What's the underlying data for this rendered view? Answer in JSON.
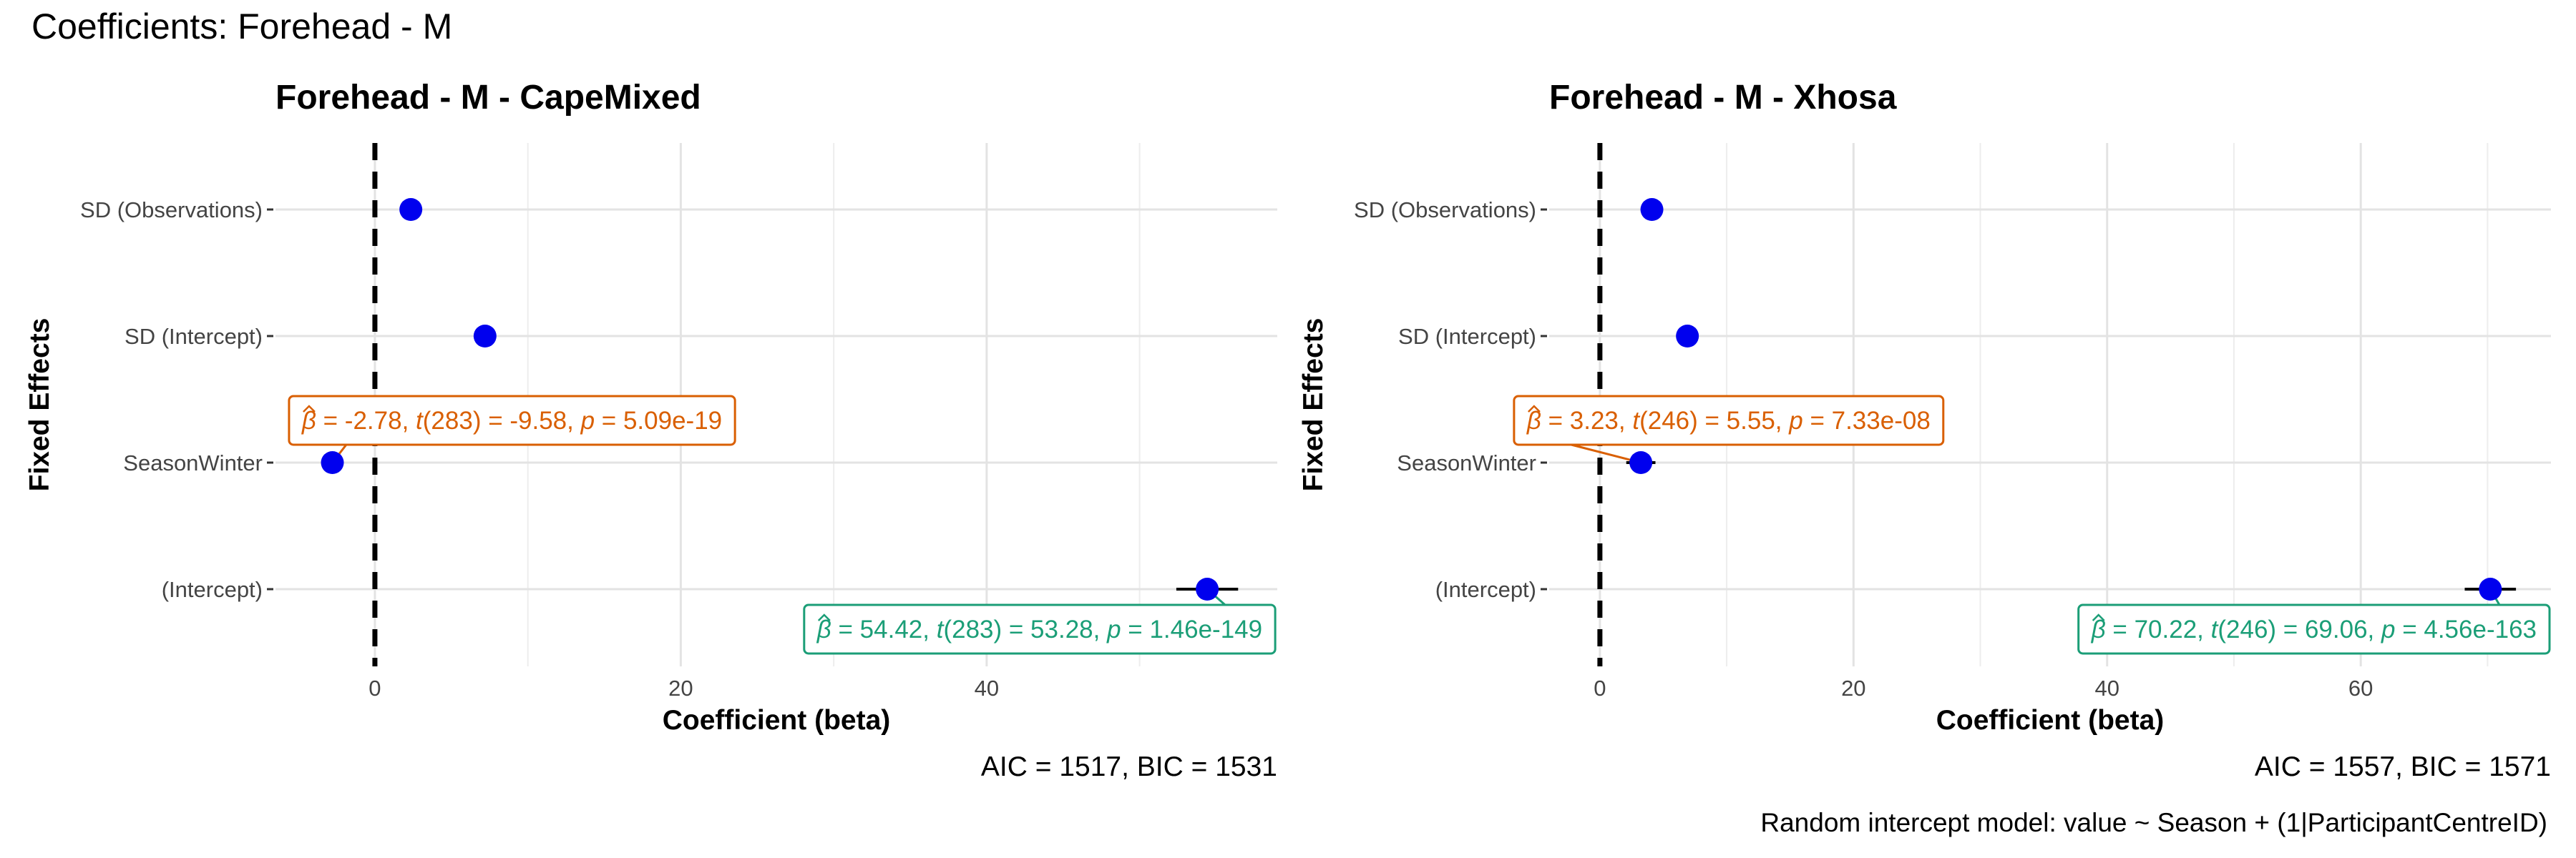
{
  "figure": {
    "title": "Coefficients: Forehead - M",
    "caption": "Random intercept model: value ~ Season + (1|ParticipantCentreID)"
  },
  "chart_data": [
    {
      "type": "scatter",
      "title": "Forehead - M - CapeMixed",
      "xlabel": "Coefficient (beta)",
      "ylabel": "Fixed Effects",
      "xlim": [
        -6.5,
        59
      ],
      "xticks": [
        0,
        20,
        40
      ],
      "reference_line": 0,
      "terms": [
        "SD (Observations)",
        "SD (Intercept)",
        "SeasonWinter",
        "(Intercept)"
      ],
      "estimates": [
        2.35,
        7.2,
        -2.78,
        54.42
      ],
      "ci_low": [
        null,
        null,
        -3.35,
        52.4
      ],
      "ci_high": [
        null,
        null,
        -2.21,
        56.44
      ],
      "point_color": "#0000ee",
      "labels": [
        {
          "term": "SeasonWinter",
          "estimate": "-2.78",
          "df": "283",
          "t": "-9.58",
          "p": "5.09e-19",
          "color": "#d95f02"
        },
        {
          "term": "(Intercept)",
          "estimate": "54.42",
          "df": "283",
          "t": "53.28",
          "p": "1.46e-149",
          "color": "#1b9e77"
        }
      ],
      "fit_stats": "AIC = 1517, BIC = 1531",
      "grid": true
    },
    {
      "type": "scatter",
      "title": "Forehead - M - Xhosa",
      "xlabel": "Coefficient (beta)",
      "ylabel": "Fixed Effects",
      "xlim": [
        -4,
        75
      ],
      "xticks": [
        0,
        20,
        40,
        60
      ],
      "reference_line": 0,
      "terms": [
        "SD (Observations)",
        "SD (Intercept)",
        "SeasonWinter",
        "(Intercept)"
      ],
      "estimates": [
        4.1,
        6.9,
        3.23,
        70.22
      ],
      "ci_low": [
        null,
        null,
        2.08,
        68.2
      ],
      "ci_high": [
        null,
        null,
        4.38,
        72.24
      ],
      "point_color": "#0000ee",
      "labels": [
        {
          "term": "SeasonWinter",
          "estimate": "3.23",
          "df": "246",
          "t": "5.55",
          "p": "7.33e-08",
          "color": "#d95f02"
        },
        {
          "term": "(Intercept)",
          "estimate": "70.22",
          "df": "246",
          "t": "69.06",
          "p": "4.56e-163",
          "color": "#1b9e77"
        }
      ],
      "fit_stats": "AIC = 1557, BIC = 1571",
      "grid": true
    }
  ]
}
